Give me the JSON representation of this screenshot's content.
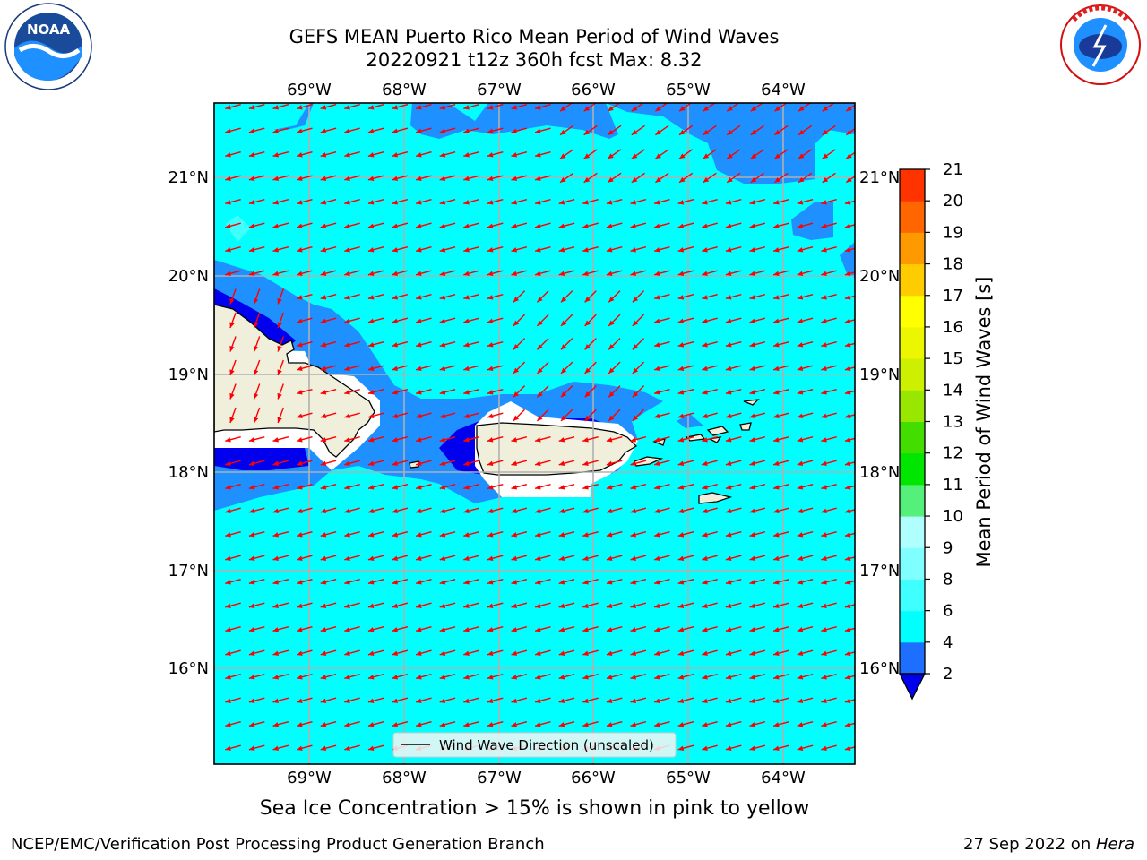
{
  "header": {
    "title_line1": "GEFS MEAN Puerto Rico Mean Period of Wind Waves",
    "title_line2": "20220921 t12z 360h fcst   Max: 8.32"
  },
  "logos": {
    "left": {
      "text": "NOAA",
      "ring_text": "NATIONAL OCEANIC AND ATMOSPHERIC ADMINISTRATION · U.S. DEPARTMENT OF COMMERCE"
    },
    "right": {
      "ring_text": "NATIONAL WEATHER SERVICE"
    }
  },
  "map": {
    "lon_labels": [
      "69°W",
      "68°W",
      "67°W",
      "66°W",
      "65°W",
      "64°W"
    ],
    "lat_labels": [
      "21°N",
      "20°N",
      "19°N",
      "18°N",
      "17°N",
      "16°N"
    ],
    "legend_label": "Wind Wave Direction (unscaled)",
    "colors": {
      "ocean_cyan": "#00ffff",
      "band_light": "#1e90ff",
      "band_dark": "#0000ee",
      "land": "#efefdc",
      "arrow": "#ff0000"
    }
  },
  "colorbar": {
    "label": "Mean Period of Wind Waves [s]",
    "ticks": [
      "2",
      "4",
      "6",
      "8",
      "9",
      "10",
      "11",
      "12",
      "13",
      "14",
      "15",
      "16",
      "17",
      "18",
      "19",
      "20",
      "21"
    ],
    "colors": [
      "#1e6eff",
      "#00ffff",
      "#40ffff",
      "#7fffff",
      "#b0ffff",
      "#55f07a",
      "#00e600",
      "#44dd00",
      "#99e600",
      "#ccf000",
      "#ecf600",
      "#ffff00",
      "#ffcc00",
      "#ff9900",
      "#ff6600",
      "#ff3300",
      "#ff0000"
    ],
    "under_color": "#0000ee"
  },
  "caption": "Sea Ice Concentration > 15% is shown in pink to yellow",
  "footer": {
    "left": "NCEP/EMC/Verification Post Processing Product Generation Branch",
    "right_prefix": "27 Sep 2022 on ",
    "right_host": "Hera"
  }
}
